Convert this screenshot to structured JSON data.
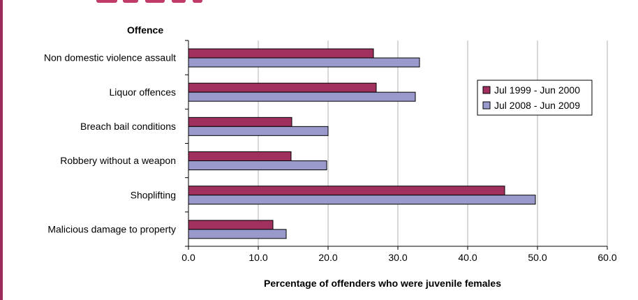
{
  "chart_data": {
    "type": "bar",
    "orientation": "horizontal",
    "title": "",
    "ylabel": "Offence",
    "xlabel": "Percentage of offenders who were juvenile females",
    "categories": [
      "Non domestic violence assault",
      "Liquor offences",
      "Breach bail conditions",
      "Robbery without a weapon",
      "Shoplifting",
      "Malicious damage to property"
    ],
    "series": [
      {
        "name": "Jul 1999 - Jun 2000",
        "color": "#a0305e",
        "values": [
          26.5,
          26.9,
          14.8,
          14.7,
          45.3,
          12.1
        ]
      },
      {
        "name": "Jul 2008 - Jun 2009",
        "color": "#9999cc",
        "values": [
          33.1,
          32.5,
          20.0,
          19.8,
          49.7,
          14.0
        ]
      }
    ],
    "xlim": [
      0,
      60
    ],
    "xticks": [
      0,
      10,
      20,
      30,
      40,
      50,
      60
    ],
    "xtick_labels": [
      "0.0",
      "10.0",
      "20.0",
      "30.0",
      "40.0",
      "50.0",
      "60.0"
    ],
    "grid": true,
    "legend_position": "right"
  }
}
